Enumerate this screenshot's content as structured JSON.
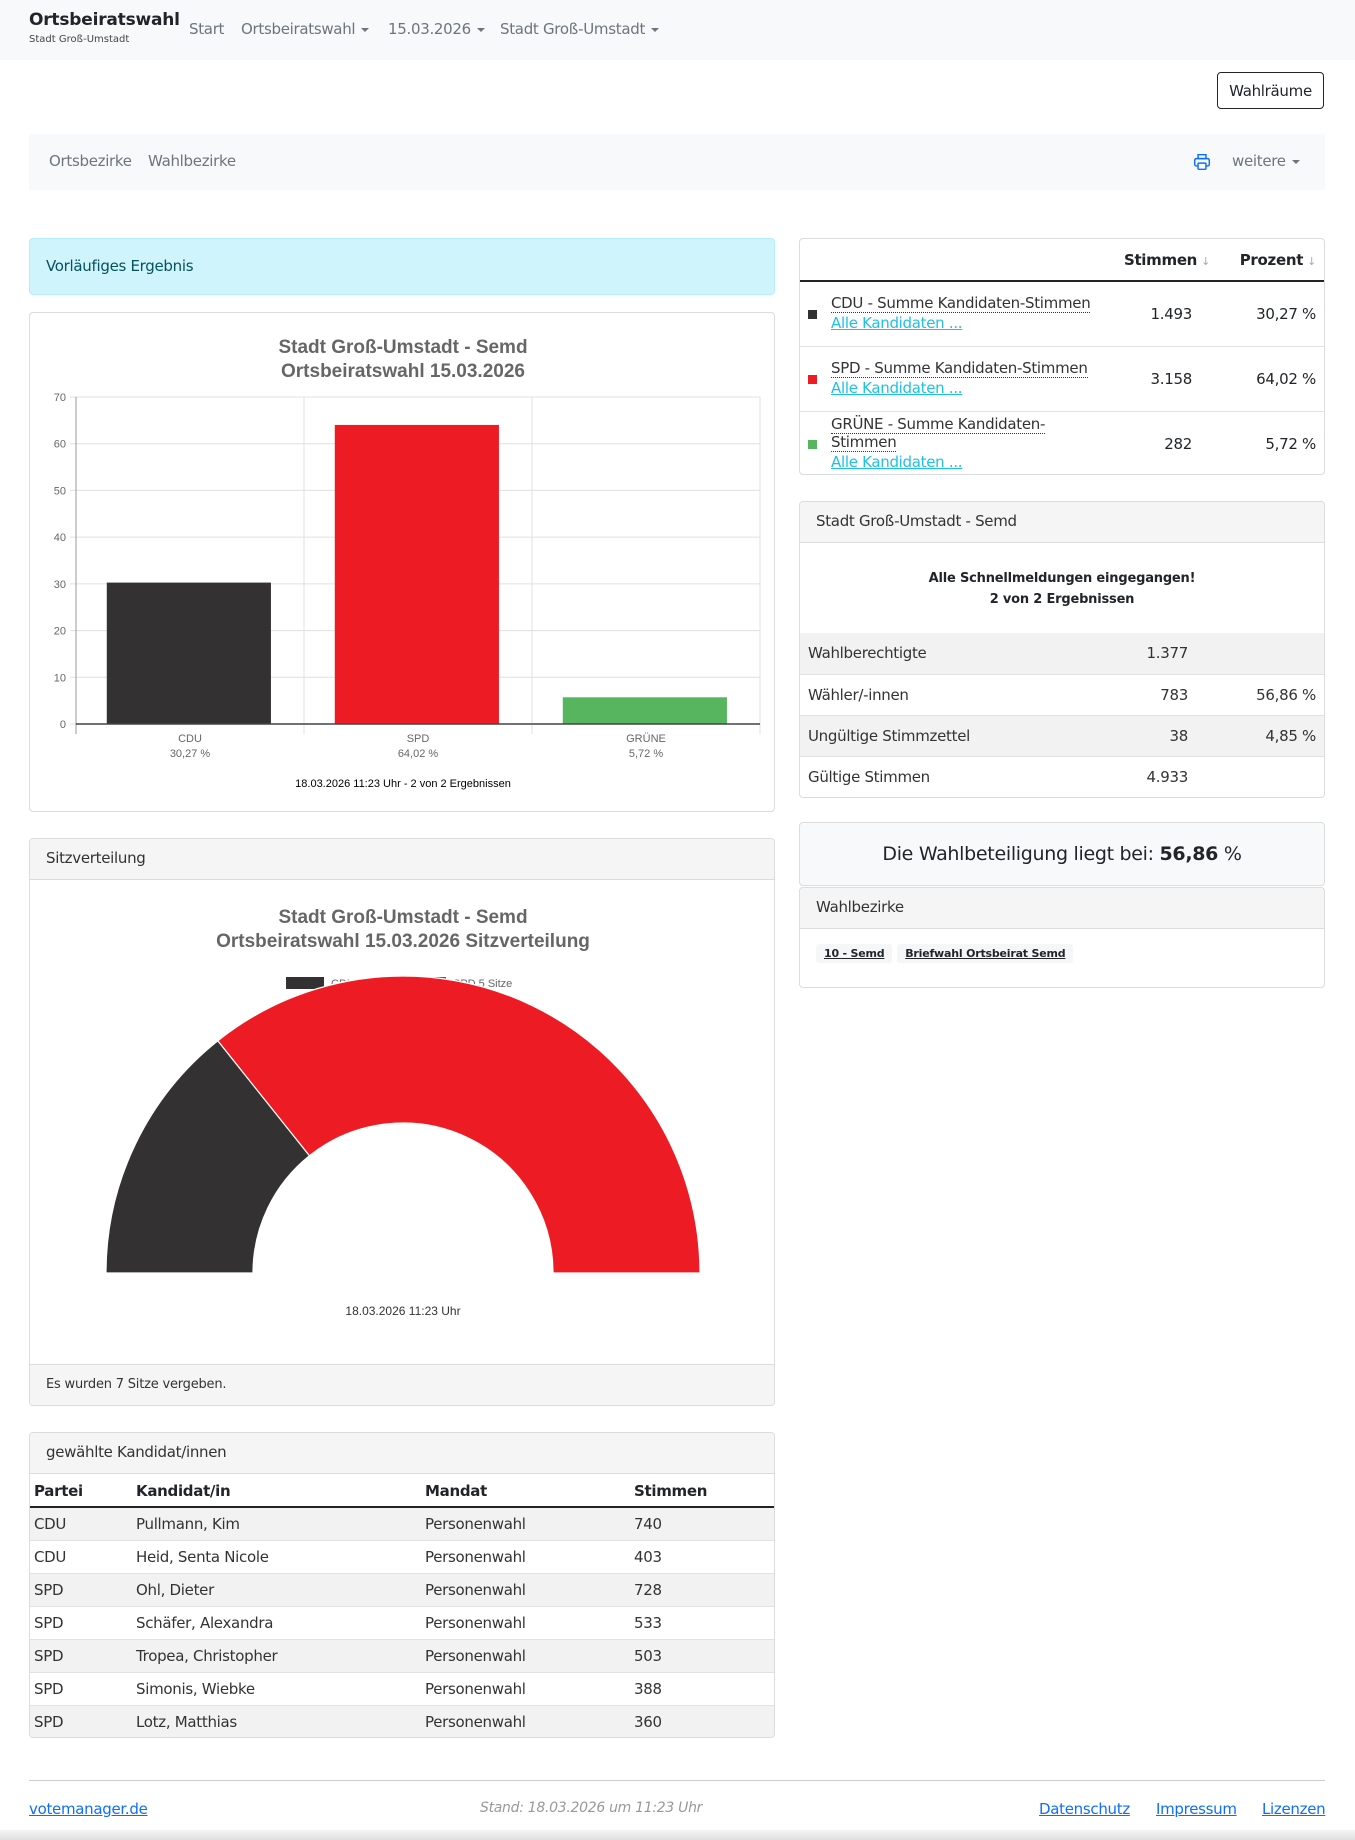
{
  "navbar": {
    "brand_title": "Ortsbeiratswahl",
    "brand_subtitle": "Stadt Groß-Umstadt",
    "links": [
      {
        "label": "Start",
        "dropdown": false
      },
      {
        "label": "Ortsbeiratswahl",
        "dropdown": true
      },
      {
        "label": "15.03.2026",
        "dropdown": true
      },
      {
        "label": "Stadt Groß-Umstadt",
        "dropdown": true
      }
    ]
  },
  "wahlraeume_button": "Wahlräume",
  "subnav": {
    "links": [
      "Ortsbezirke",
      "Wahlbezirke"
    ],
    "print_icon": "printer-icon",
    "more_label": "weitere"
  },
  "alert": "Vorläufiges Ergebnis",
  "chart_data": [
    {
      "type": "bar",
      "title": [
        "Stadt Groß-Umstadt - Semd",
        "Ortsbeiratswahl 15.03.2026"
      ],
      "categories": [
        "CDU",
        "SPD",
        "GRÜNE"
      ],
      "category_sublabels": [
        "30,27 %",
        "64,02 %",
        "5,72 %"
      ],
      "values": [
        30.27,
        64.02,
        5.72
      ],
      "colors": [
        "#333132",
        "#ed1c24",
        "#57b560"
      ],
      "ylim": [
        0,
        70
      ],
      "yticks": [
        0,
        10,
        20,
        30,
        40,
        50,
        60,
        70
      ],
      "grid": true,
      "caption": "18.03.2026 11:23 Uhr - 2 von 2 Ergebnissen",
      "xlabel": "",
      "ylabel": ""
    },
    {
      "type": "pie",
      "variant": "semicircle",
      "title": [
        "Stadt Groß-Umstadt - Semd",
        "Ortsbeiratswahl 15.03.2026 Sitzverteilung"
      ],
      "categories": [
        "CDU",
        "SPD"
      ],
      "values": [
        2,
        5
      ],
      "legend": [
        "CDU,2 Sitze",
        "SPD,5 Sitze"
      ],
      "legend_position": "top",
      "colors": [
        "#333132",
        "#ed1c24"
      ],
      "caption": "18.03.2026 11:23 Uhr"
    }
  ],
  "seats": {
    "header": "Sitzverteilung",
    "footer": "Es wurden 7 Sitze vergeben."
  },
  "candidates": {
    "header": "gewählte Kandidat/innen",
    "columns": [
      "Partei",
      "Kandidat/in",
      "Mandat",
      "Stimmen"
    ],
    "rows": [
      [
        "CDU",
        "Pullmann, Kim",
        "Personenwahl",
        "740"
      ],
      [
        "CDU",
        "Heid, Senta Nicole",
        "Personenwahl",
        "403"
      ],
      [
        "SPD",
        "Ohl, Dieter",
        "Personenwahl",
        "728"
      ],
      [
        "SPD",
        "Schäfer, Alexandra",
        "Personenwahl",
        "533"
      ],
      [
        "SPD",
        "Tropea, Christopher",
        "Personenwahl",
        "503"
      ],
      [
        "SPD",
        "Simonis, Wiebke",
        "Personenwahl",
        "388"
      ],
      [
        "SPD",
        "Lotz, Matthias",
        "Personenwahl",
        "360"
      ]
    ]
  },
  "results": {
    "columns": [
      "Stimmen",
      "Prozent"
    ],
    "sort_icon": "sort-down-icon",
    "rows": [
      {
        "party": "CDU - Summe Kandidaten-Stimmen",
        "link": "Alle Kandidaten ...",
        "votes": "1.493",
        "percent": "30,27 %",
        "color": "#333132"
      },
      {
        "party": "SPD - Summe Kandidaten-Stimmen",
        "link": "Alle Kandidaten ...",
        "votes": "3.158",
        "percent": "64,02 %",
        "color": "#ed1c24"
      },
      {
        "party": "GRÜNE - Summe Kandidaten-Stimmen",
        "link": "Alle Kandidaten ...",
        "votes": "282",
        "percent": "5,72 %",
        "color": "#57b560"
      }
    ]
  },
  "stats": {
    "header": "Stadt Groß-Umstadt - Semd",
    "message_line1": "Alle Schnellmeldungen eingegangen!",
    "message_line2": "2 von 2 Ergebnissen",
    "rows": [
      {
        "label": "Wahlberechtigte",
        "value": "1.377",
        "percent": ""
      },
      {
        "label": "Wähler/-innen",
        "value": "783",
        "percent": "56,86 %"
      },
      {
        "label": "Ungültige Stimmzettel",
        "value": "38",
        "percent": "4,85 %"
      },
      {
        "label": "Gültige Stimmen",
        "value": "4.933",
        "percent": ""
      }
    ]
  },
  "turnout": {
    "prefix": "Die Wahlbeteiligung liegt bei:",
    "value": "56,86",
    "suffix": "%"
  },
  "districts": {
    "header": "Wahlbezirke",
    "items": [
      "10 - Semd",
      "Briefwahl Ortsbeirat Semd"
    ]
  },
  "footer": {
    "brand_link": "votemanager.de",
    "stand": "Stand: 18.03.2026 um 11:23 Uhr",
    "links": [
      "Datenschutz",
      "Impressum",
      "Lizenzen"
    ]
  }
}
